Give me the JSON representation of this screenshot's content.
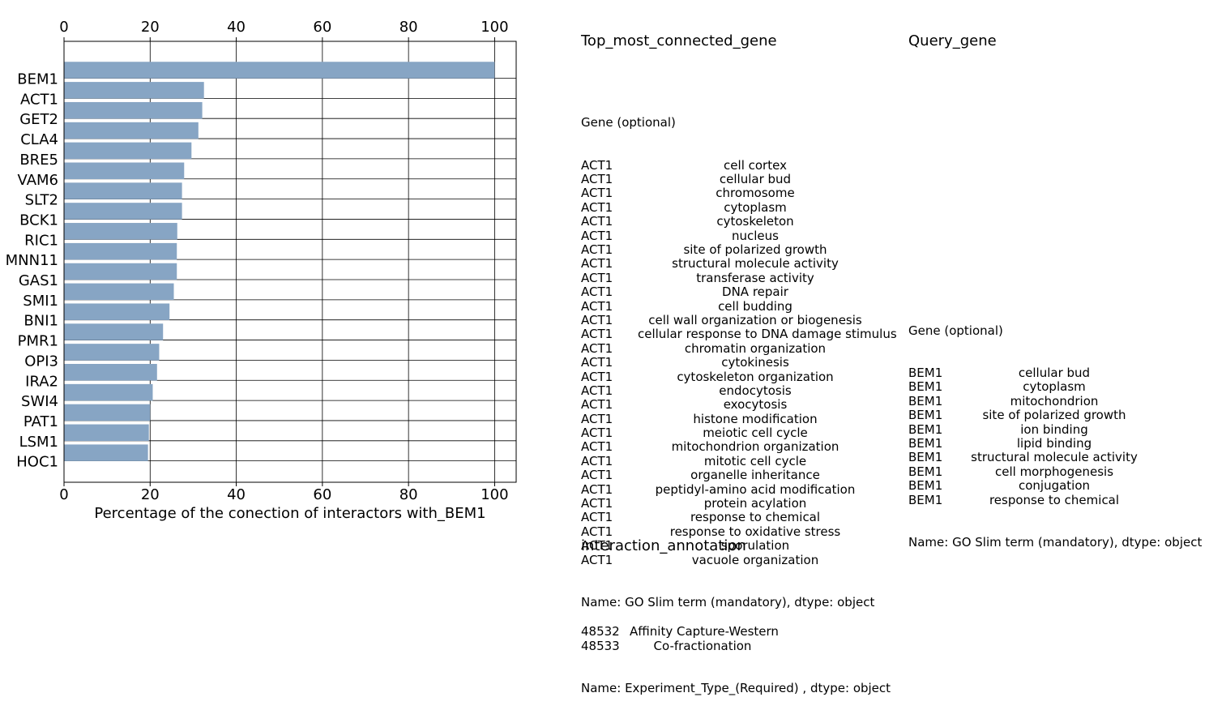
{
  "chart_data": {
    "type": "bar",
    "orientation": "horizontal",
    "categories": [
      "BEM1",
      "ACT1",
      "GET2",
      "CLA4",
      "BRE5",
      "VAM6",
      "SLT2",
      "BCK1",
      "RIC1",
      "MNN11",
      "GAS1",
      "SMI1",
      "BNI1",
      "PMR1",
      "OPI3",
      "IRA2",
      "SWI4",
      "PAT1",
      "LSM1",
      "HOC1"
    ],
    "values": [
      100,
      32.5,
      32.1,
      31.2,
      29.6,
      27.9,
      27.4,
      27.4,
      26.3,
      26.2,
      26.2,
      25.5,
      24.5,
      23.0,
      22.1,
      21.6,
      20.6,
      20.0,
      19.7,
      19.5
    ],
    "xlabel": "Percentage of the conection of interactors with_BEM1",
    "xlim": [
      0,
      105
    ],
    "xticks": [
      0,
      20,
      40,
      60,
      80,
      100
    ],
    "ticks_top_and_bottom": true,
    "grid": true,
    "bar_color": "#87a5c4"
  },
  "top_panel": {
    "title": "Top_most_connected_gene",
    "header": "Gene (optional)",
    "rows": [
      {
        "gene": "ACT1",
        "term": "cell cortex"
      },
      {
        "gene": "ACT1",
        "term": "cellular bud"
      },
      {
        "gene": "ACT1",
        "term": "chromosome"
      },
      {
        "gene": "ACT1",
        "term": "cytoplasm"
      },
      {
        "gene": "ACT1",
        "term": "cytoskeleton"
      },
      {
        "gene": "ACT1",
        "term": "nucleus"
      },
      {
        "gene": "ACT1",
        "term": "site of polarized growth"
      },
      {
        "gene": "ACT1",
        "term": "structural molecule activity"
      },
      {
        "gene": "ACT1",
        "term": "transferase activity"
      },
      {
        "gene": "ACT1",
        "term": "DNA repair"
      },
      {
        "gene": "ACT1",
        "term": "cell budding"
      },
      {
        "gene": "ACT1",
        "term": "cell wall organization or biogenesis"
      },
      {
        "gene": "ACT1",
        "term": "cellular response to DNA damage stimulus"
      },
      {
        "gene": "ACT1",
        "term": "chromatin organization"
      },
      {
        "gene": "ACT1",
        "term": "cytokinesis"
      },
      {
        "gene": "ACT1",
        "term": "cytoskeleton organization"
      },
      {
        "gene": "ACT1",
        "term": "endocytosis"
      },
      {
        "gene": "ACT1",
        "term": "exocytosis"
      },
      {
        "gene": "ACT1",
        "term": "histone modification"
      },
      {
        "gene": "ACT1",
        "term": "meiotic cell cycle"
      },
      {
        "gene": "ACT1",
        "term": "mitochondrion organization"
      },
      {
        "gene": "ACT1",
        "term": "mitotic cell cycle"
      },
      {
        "gene": "ACT1",
        "term": "organelle inheritance"
      },
      {
        "gene": "ACT1",
        "term": "peptidyl-amino acid modification"
      },
      {
        "gene": "ACT1",
        "term": "protein acylation"
      },
      {
        "gene": "ACT1",
        "term": "response to chemical"
      },
      {
        "gene": "ACT1",
        "term": "response to oxidative stress"
      },
      {
        "gene": "ACT1",
        "term": "sporulation"
      },
      {
        "gene": "ACT1",
        "term": "vacuole organization"
      }
    ],
    "footer": "Name: GO Slim term (mandatory), dtype: object"
  },
  "query_panel": {
    "title": "Query_gene",
    "header": "Gene (optional)",
    "rows": [
      {
        "gene": "BEM1",
        "term": "cellular bud"
      },
      {
        "gene": "BEM1",
        "term": "cytoplasm"
      },
      {
        "gene": "BEM1",
        "term": "mitochondrion"
      },
      {
        "gene": "BEM1",
        "term": "site of polarized growth"
      },
      {
        "gene": "BEM1",
        "term": "ion binding"
      },
      {
        "gene": "BEM1",
        "term": "lipid binding"
      },
      {
        "gene": "BEM1",
        "term": "structural molecule activity"
      },
      {
        "gene": "BEM1",
        "term": "cell morphogenesis"
      },
      {
        "gene": "BEM1",
        "term": "conjugation"
      },
      {
        "gene": "BEM1",
        "term": "response to chemical"
      }
    ],
    "footer": "Name: GO Slim term (mandatory), dtype: object"
  },
  "interaction_panel": {
    "title": "interaction_annotation",
    "rows": [
      {
        "id": "48532",
        "type": "Affinity Capture-Western"
      },
      {
        "id": "48533",
        "type": "Co-fractionation"
      }
    ],
    "footer": "Name: Experiment_Type_(Required) , dtype: object"
  }
}
